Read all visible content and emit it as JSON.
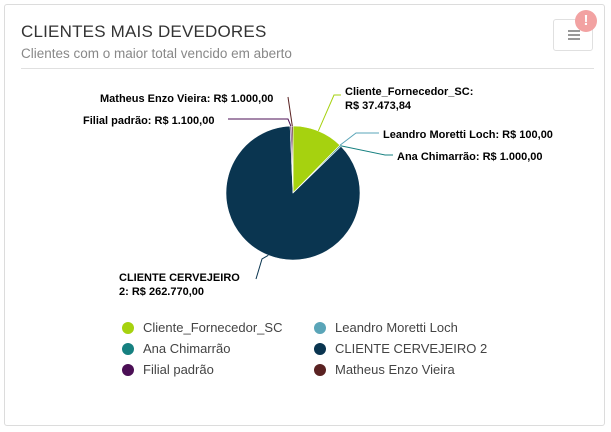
{
  "header": {
    "title": "CLIENTES MAIS DEVEDORES",
    "subtitle": "Clientes com o maior total vencido em aberto",
    "alert_badge": "!"
  },
  "colors": {
    "accent": "#a6d20f",
    "badge": "#f2a2a2"
  },
  "icons": {
    "menu": "hamburger-menu-icon",
    "alert": "exclamation-icon"
  },
  "chart_data": {
    "type": "pie",
    "title": "",
    "legend_placement": "bottom",
    "slices": [
      {
        "name": "Cliente_Fornecedor_SC",
        "value": 37473.84,
        "label": "R$ 37.473,84",
        "color": "#a6d20f"
      },
      {
        "name": "Leandro Moretti Loch",
        "value": 100.0,
        "label": "R$ 100,00",
        "color": "#5aa5b8"
      },
      {
        "name": "Ana Chimarrão",
        "value": 1000.0,
        "label": "R$ 1.000,00",
        "color": "#168080"
      },
      {
        "name": "CLIENTE CERVEJEIRO 2",
        "value": 262770.0,
        "label": "R$ 262.770,00",
        "color": "#0a3550"
      },
      {
        "name": "Filial padrão",
        "value": 1100.0,
        "label": "R$ 1.100,00",
        "color": "#4b0f55"
      },
      {
        "name": "Matheus Enzo Vieira",
        "value": 1000.0,
        "label": "R$ 1.000,00",
        "color": "#5a2222"
      }
    ],
    "data_labels": [
      [
        "Cliente_Fornecedor_SC:",
        "R$ 37.473,84"
      ],
      [
        "Leandro Moretti Loch: R$ 100,00"
      ],
      [
        "Ana Chimarrão: R$ 1.000,00"
      ],
      [
        "CLIENTE CERVEJEIRO",
        "2: R$ 262.770,00"
      ],
      [
        "Filial padrão: R$ 1.100,00"
      ],
      [
        "Matheus Enzo Vieira: R$ 1.000,00"
      ]
    ]
  }
}
